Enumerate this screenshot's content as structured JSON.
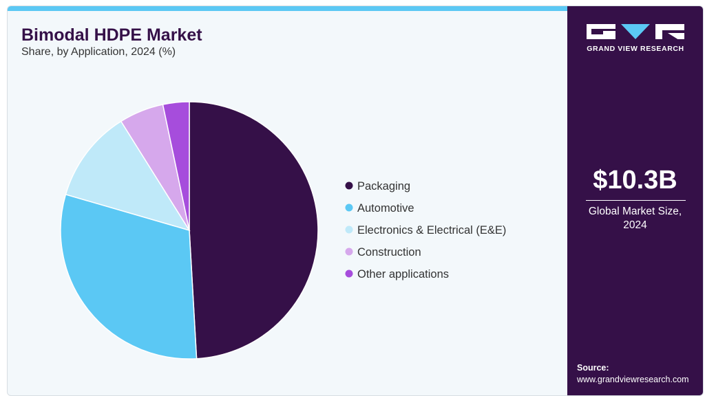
{
  "header": {
    "title": "Bimodal HDPE Market",
    "subtitle": "Share, by Application, 2024 (%)"
  },
  "sidebar": {
    "brand": "GRAND VIEW RESEARCH",
    "market_value": "$10.3B",
    "market_label_line1": "Global Market Size,",
    "market_label_line2": "2024",
    "source_label": "Source:",
    "source_url": "www.grandviewresearch.com"
  },
  "colors": {
    "accent": "#5bc8f4",
    "brand_dark": "#351048",
    "background": "#f3f8fb"
  },
  "chart_data": {
    "type": "pie",
    "title": "Bimodal HDPE Market",
    "subtitle": "Share, by Application, 2024 (%)",
    "legend_position": "right",
    "start_angle": "top",
    "direction": "clockwise",
    "categories": [
      "Packaging",
      "Automotive",
      "Electronics & Electrical (E&E)",
      "Construction",
      "Other applications"
    ],
    "values": [
      49.1,
      30.4,
      11.6,
      5.6,
      3.3
    ],
    "colors": [
      "#351048",
      "#5bc8f4",
      "#bfe9f9",
      "#d6a8ec",
      "#a64ddc"
    ]
  }
}
